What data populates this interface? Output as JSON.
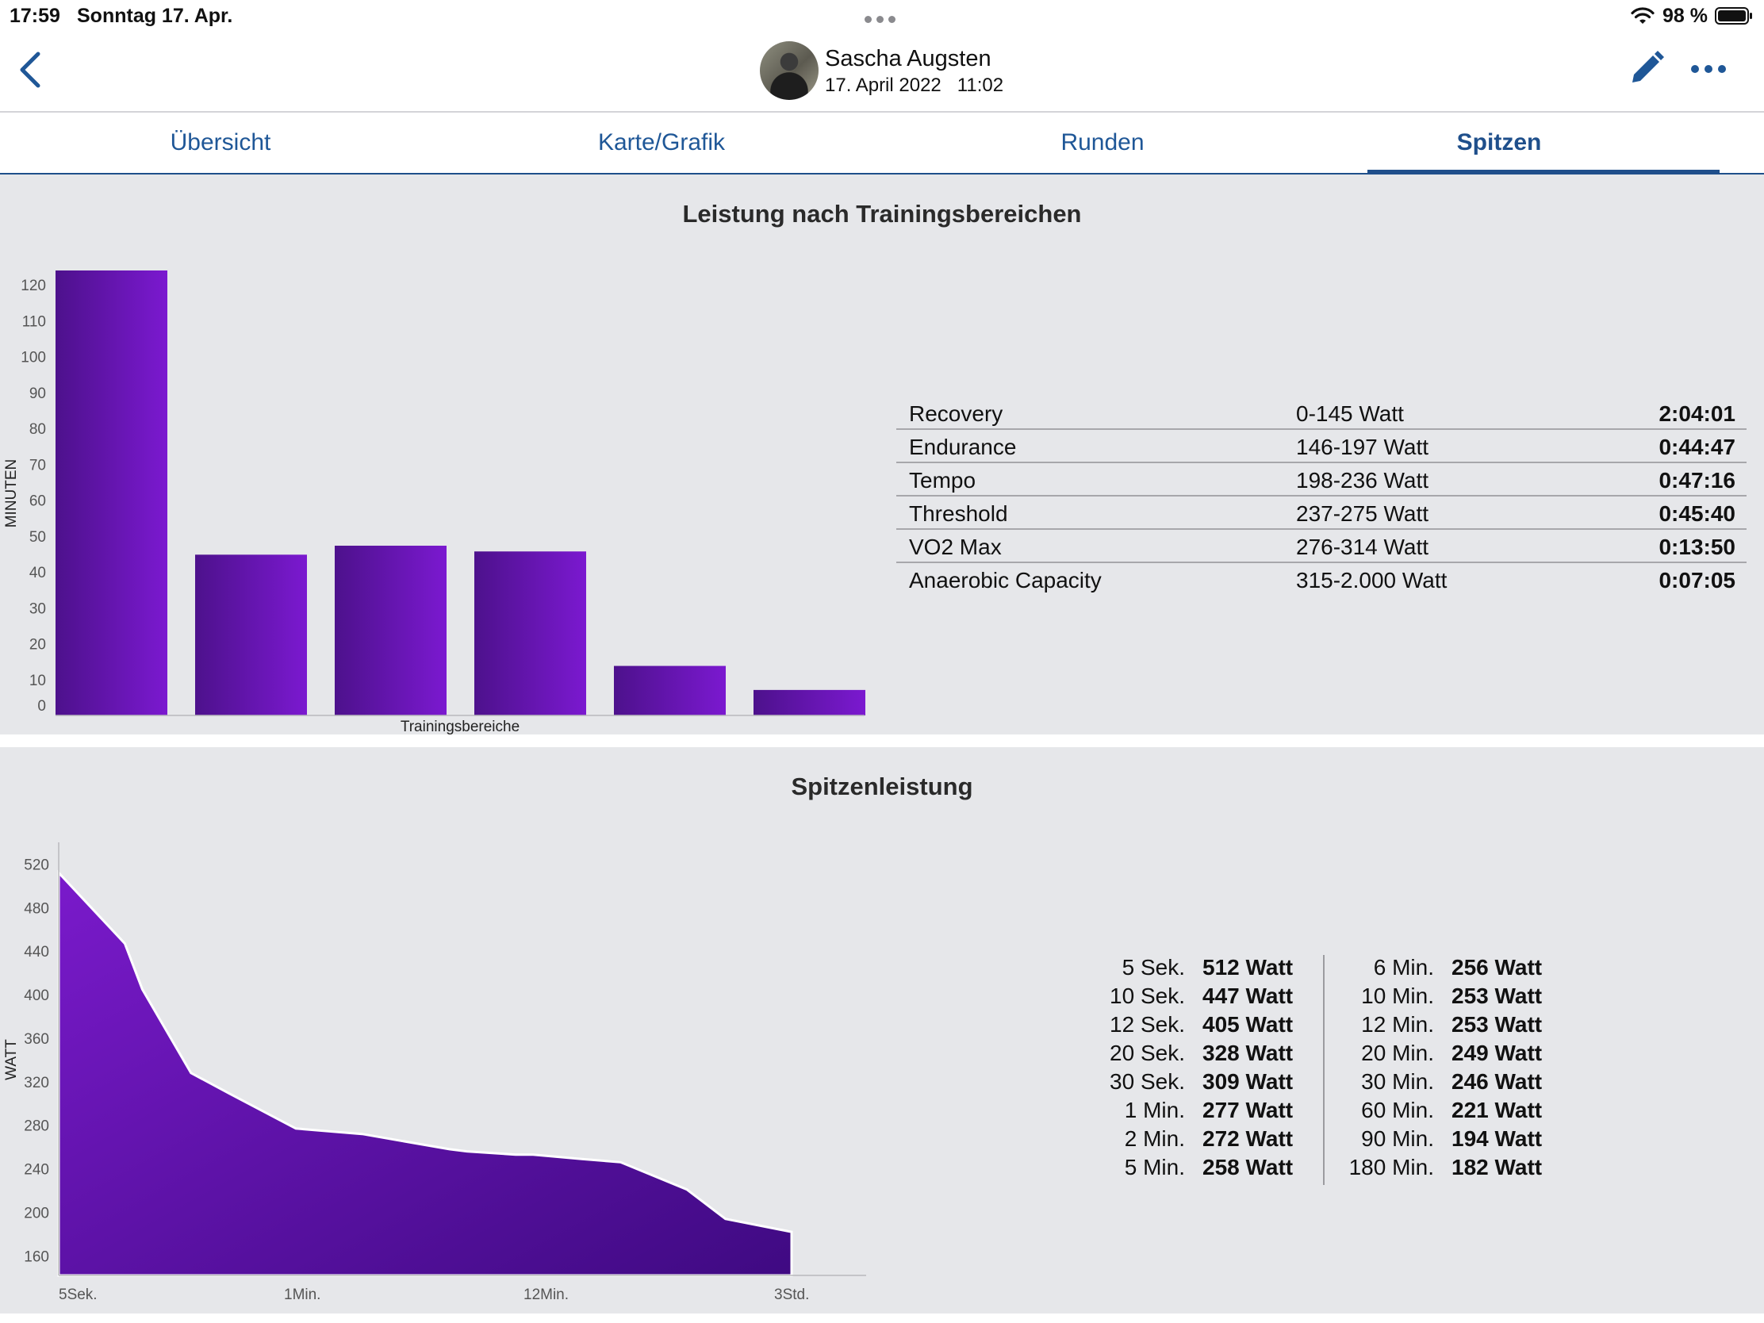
{
  "status_bar": {
    "time": "17:59",
    "date": "Sonntag 17. Apr.",
    "battery": "98 %"
  },
  "header": {
    "name": "Sascha Augsten",
    "date": "17. April 2022",
    "time": "11:02"
  },
  "tabs": [
    {
      "label": "Übersicht",
      "active": false
    },
    {
      "label": "Karte/Grafik",
      "active": false
    },
    {
      "label": "Runden",
      "active": false
    },
    {
      "label": "Spitzen",
      "active": true
    }
  ],
  "zones_section": {
    "title": "Leistung nach Trainingsbereichen",
    "rows": [
      {
        "name": "Recovery",
        "range": "0-145 Watt",
        "time": "2:04:01"
      },
      {
        "name": "Endurance",
        "range": "146-197 Watt",
        "time": "0:44:47"
      },
      {
        "name": "Tempo",
        "range": "198-236 Watt",
        "time": "0:47:16"
      },
      {
        "name": "Threshold",
        "range": "237-275 Watt",
        "time": "0:45:40"
      },
      {
        "name": "VO2 Max",
        "range": "276-314 Watt",
        "time": "0:13:50"
      },
      {
        "name": "Anaerobic Capacity",
        "range": "315-2.000 Watt",
        "time": "0:07:05"
      }
    ]
  },
  "peak_section": {
    "title": "Spitzenleistung",
    "left": [
      {
        "label": "5 Sek.",
        "value": "512 Watt"
      },
      {
        "label": "10 Sek.",
        "value": "447 Watt"
      },
      {
        "label": "12 Sek.",
        "value": "405 Watt"
      },
      {
        "label": "20 Sek.",
        "value": "328 Watt"
      },
      {
        "label": "30 Sek.",
        "value": "309 Watt"
      },
      {
        "label": "1 Min.",
        "value": "277 Watt"
      },
      {
        "label": "2 Min.",
        "value": "272 Watt"
      },
      {
        "label": "5 Min.",
        "value": "258 Watt"
      }
    ],
    "right": [
      {
        "label": "6 Min.",
        "value": "256 Watt"
      },
      {
        "label": "10 Min.",
        "value": "253 Watt"
      },
      {
        "label": "12 Min.",
        "value": "253 Watt"
      },
      {
        "label": "20 Min.",
        "value": "249 Watt"
      },
      {
        "label": "30 Min.",
        "value": "246 Watt"
      },
      {
        "label": "60 Min.",
        "value": "221 Watt"
      },
      {
        "label": "90 Min.",
        "value": "194 Watt"
      },
      {
        "label": "180 Min.",
        "value": "182 Watt"
      }
    ]
  },
  "chart_data": [
    {
      "type": "bar",
      "categories": [
        "Recovery",
        "Endurance",
        "Tempo",
        "Threshold",
        "VO2 Max",
        "Anaerobic Capacity"
      ],
      "values": [
        124.0,
        44.8,
        47.3,
        45.7,
        13.8,
        7.1
      ],
      "xlabel": "Trainingsbereiche",
      "ylabel": "MINUTEN",
      "ylim": [
        0,
        124
      ],
      "yticks": [
        0,
        10,
        20,
        30,
        40,
        50,
        60,
        70,
        80,
        90,
        100,
        110,
        120
      ],
      "colors": [
        "#4d118c",
        "#7b19d0"
      ]
    },
    {
      "type": "area",
      "x": [
        5,
        10,
        12,
        20,
        30,
        60,
        120,
        300,
        360,
        600,
        720,
        1200,
        1800,
        3600,
        5400,
        10800
      ],
      "values": [
        512,
        447,
        405,
        328,
        309,
        277,
        272,
        258,
        256,
        253,
        253,
        249,
        246,
        221,
        194,
        182
      ],
      "xticks": [
        "5Sek.",
        "1Min.",
        "12Min.",
        "3Std."
      ],
      "ylabel": "WATT",
      "ylim": [
        142,
        540
      ],
      "yticks": [
        160,
        200,
        240,
        280,
        320,
        360,
        400,
        440,
        480,
        520
      ],
      "colors": [
        "#7a1acb",
        "#3f0a82"
      ]
    }
  ]
}
